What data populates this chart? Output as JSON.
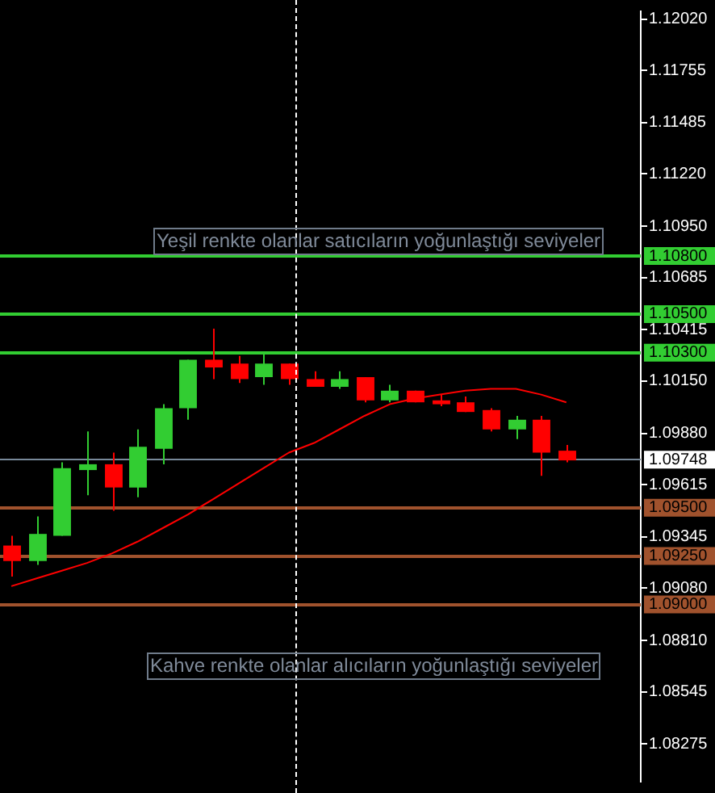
{
  "chart_data": {
    "type": "candlestick",
    "categories": [
      null,
      null,
      null,
      null,
      null,
      null,
      null,
      null,
      null,
      null,
      null,
      null,
      null,
      null,
      null,
      null,
      null,
      null,
      null,
      null,
      null,
      null,
      null
    ],
    "ohlc": [
      [
        1.093,
        1.0935,
        1.0914,
        1.0922
      ],
      [
        1.0922,
        1.0945,
        1.092,
        1.0936
      ],
      [
        1.0935,
        1.0973,
        1.0935,
        1.097
      ],
      [
        1.0969,
        1.0989,
        1.0956,
        1.0972
      ],
      [
        1.0972,
        1.0978,
        1.0948,
        1.096
      ],
      [
        1.096,
        1.099,
        1.0955,
        1.0981
      ],
      [
        1.098,
        1.1003,
        1.0972,
        1.1001
      ],
      [
        1.1001,
        1.1026,
        1.0995,
        1.1026
      ],
      [
        1.1026,
        1.1042,
        1.1016,
        1.1022
      ],
      [
        1.1024,
        1.1028,
        1.1014,
        1.1016
      ],
      [
        1.1017,
        1.1029,
        1.1013,
        1.1024
      ],
      [
        1.1024,
        1.1024,
        1.1013,
        1.1016
      ],
      [
        1.1016,
        1.102,
        1.1012,
        1.1012
      ],
      [
        1.1012,
        1.102,
        1.1011,
        1.1016
      ],
      [
        1.1017,
        1.1017,
        1.1004,
        1.1005
      ],
      [
        1.1005,
        1.1013,
        1.1004,
        1.101
      ],
      [
        1.101,
        1.101,
        1.1004,
        1.1004
      ],
      [
        1.1005,
        1.1008,
        1.1002,
        1.1003
      ],
      [
        1.1004,
        1.1007,
        1.0999,
        1.0999
      ],
      [
        1.1,
        1.1001,
        1.0989,
        1.099
      ],
      [
        1.099,
        1.0997,
        1.0985,
        1.0995
      ],
      [
        1.0995,
        1.0997,
        1.0966,
        1.0978
      ],
      [
        1.0979,
        1.0982,
        1.0973,
        1.0974
      ]
    ],
    "colors": [
      "#ff0000",
      "#32cd32",
      "#32cd32",
      "#32cd32",
      "#ff0000",
      "#32cd32",
      "#32cd32",
      "#32cd32",
      "#ff0000",
      "#ff0000",
      "#32cd32",
      "#ff0000",
      "#ff0000",
      "#32cd32",
      "#ff0000",
      "#32cd32",
      "#ff0000",
      "#ff0000",
      "#ff0000",
      "#ff0000",
      "#32cd32",
      "#ff0000",
      "#ff0000"
    ],
    "series": [
      {
        "type": "line",
        "color": "#ff0000",
        "values": [
          1.0909,
          1.0913,
          1.0917,
          1.0921,
          1.0926,
          1.0932,
          1.0939,
          1.0946,
          1.0954,
          1.0962,
          1.097,
          1.0978,
          1.0983,
          1.099,
          1.0997,
          1.1003,
          1.1006,
          1.1008,
          1.101,
          1.1011,
          1.1011,
          1.1008,
          1.1004
        ]
      }
    ],
    "ylim": [
      1.0808,
      1.1206
    ],
    "yticks": [
      {
        "value": 1.1202,
        "label": "1.12020"
      },
      {
        "value": 1.11755,
        "label": "1.11755"
      },
      {
        "value": 1.11485,
        "label": "1.11485"
      },
      {
        "value": 1.1122,
        "label": "1.11220"
      },
      {
        "value": 1.1095,
        "label": "1.10950"
      },
      {
        "value": 1.10685,
        "label": "1.10685"
      },
      {
        "value": 1.10415,
        "label": "1.10415"
      },
      {
        "value": 1.1015,
        "label": "1.10150"
      },
      {
        "value": 1.0988,
        "label": "1.09880"
      },
      {
        "value": 1.09615,
        "label": "1.09615"
      },
      {
        "value": 1.09345,
        "label": "1.09345"
      },
      {
        "value": 1.0908,
        "label": "1.09080"
      },
      {
        "value": 1.0881,
        "label": "1.08810"
      },
      {
        "value": 1.08545,
        "label": "1.08545"
      },
      {
        "value": 1.08275,
        "label": "1.08275"
      }
    ],
    "ref_lines": [
      {
        "axis": "y",
        "value": 1.108,
        "label": "1.10800",
        "color": "#32cd32"
      },
      {
        "axis": "y",
        "value": 1.105,
        "label": "1.10500",
        "color": "#32cd32"
      },
      {
        "axis": "y",
        "value": 1.103,
        "label": "1.10300",
        "color": "#32cd32"
      },
      {
        "axis": "y",
        "value": 1.09748,
        "label": "1.09748",
        "color": "#778899"
      },
      {
        "axis": "y",
        "value": 1.095,
        "label": "1.09500",
        "color": "#a0522d"
      },
      {
        "axis": "y",
        "value": 1.0925,
        "label": "1.09250",
        "color": "#a0522d"
      },
      {
        "axis": "y",
        "value": 1.09,
        "label": "1.09000",
        "color": "#a0522d"
      }
    ],
    "annotations": [
      "Yeşil renkte olanlar satıcıların yoğunlaştığı seviyeler",
      "Kahve renkte olanlar alıcıların yoğunlaştığı seviyeler"
    ],
    "tick_labels": "y",
    "grid": false,
    "legend": false
  }
}
